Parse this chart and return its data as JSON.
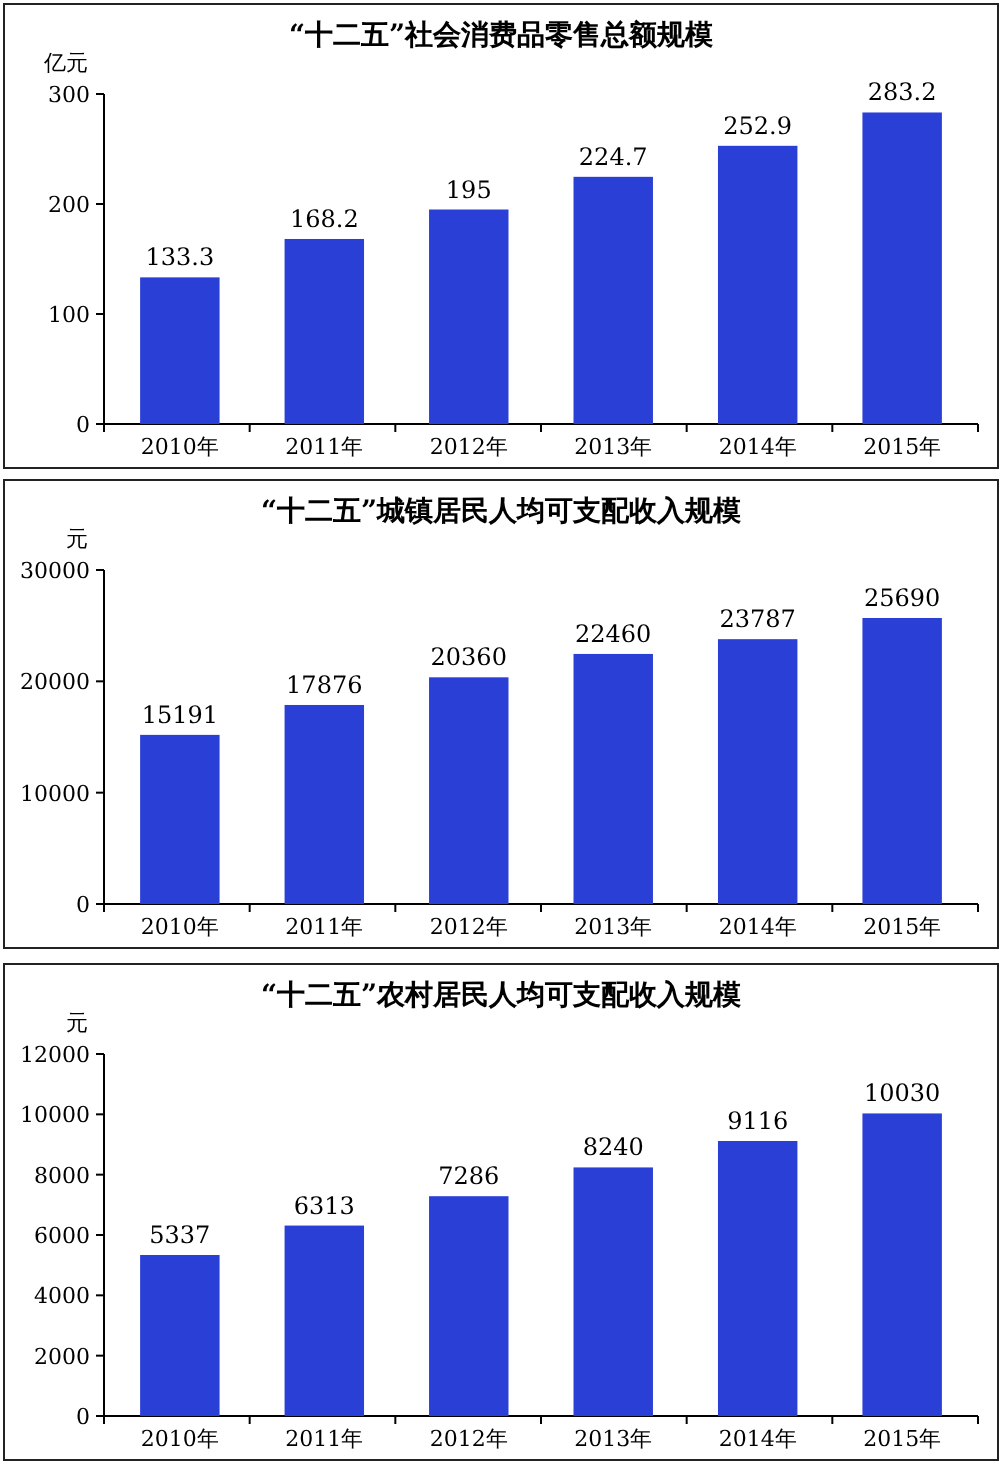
{
  "chart_data": [
    {
      "type": "bar",
      "title": "“十二五”社会消费品零售总额规模",
      "ylabel": "亿元",
      "categories": [
        "2010年",
        "2011年",
        "2012年",
        "2013年",
        "2014年",
        "2015年"
      ],
      "values": [
        133.3,
        168.2,
        195,
        224.7,
        252.9,
        283.2
      ],
      "color": "#2a3fd6",
      "ylim": [
        0,
        300
      ],
      "yticks": [
        0,
        100,
        200,
        300
      ],
      "data_labels": true
    },
    {
      "type": "bar",
      "title": "“十二五”城镇居民人均可支配收入规模",
      "ylabel": "元",
      "categories": [
        "2010年",
        "2011年",
        "2012年",
        "2013年",
        "2014年",
        "2015年"
      ],
      "values": [
        15191,
        17876,
        20360,
        22460,
        23787,
        25690
      ],
      "color": "#2a3fd6",
      "ylim": [
        0,
        30000
      ],
      "yticks": [
        0,
        10000,
        20000,
        30000
      ],
      "data_labels": true
    },
    {
      "type": "bar",
      "title": "“十二五”农村居民人均可支配收入规模",
      "ylabel": "元",
      "categories": [
        "2010年",
        "2011年",
        "2012年",
        "2013年",
        "2014年",
        "2015年"
      ],
      "values": [
        5337,
        6313,
        7286,
        8240,
        9116,
        10030
      ],
      "color": "#2a3fd6",
      "ylim": [
        0,
        12000
      ],
      "yticks": [
        0,
        2000,
        4000,
        6000,
        8000,
        10000,
        12000
      ],
      "data_labels": true
    }
  ]
}
